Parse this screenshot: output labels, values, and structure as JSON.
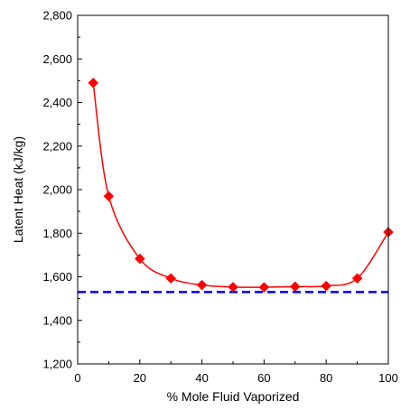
{
  "chart_data": {
    "type": "scatter",
    "title": "",
    "xlabel": "% Mole Fluid Vaporized",
    "ylabel": "Latent Heat (kJ/kg)",
    "xlim": [
      0,
      100
    ],
    "ylim": [
      1200,
      2800
    ],
    "x_ticks": [
      0,
      20,
      40,
      60,
      80,
      100
    ],
    "x_tick_labels": [
      "0",
      "20",
      "40",
      "60",
      "80",
      "100"
    ],
    "y_ticks": [
      1200,
      1400,
      1600,
      1800,
      2000,
      2200,
      2400,
      2600,
      2800
    ],
    "y_tick_labels": [
      "1,200",
      "1,400",
      "1,600",
      "1,800",
      "2,000",
      "2,200",
      "2,400",
      "2,600",
      "2,800"
    ],
    "grid": false,
    "series": [
      {
        "marker": "diamond",
        "line": "smooth",
        "color": "#ff0000",
        "x": [
          5,
          10,
          20,
          30,
          40,
          50,
          60,
          70,
          80,
          90,
          100
        ],
        "y": [
          2490,
          1970,
          1683,
          1593,
          1562,
          1553,
          1552,
          1555,
          1558,
          1593,
          1805
        ]
      }
    ],
    "reference_lines": [
      {
        "axis": "y",
        "value": 1530,
        "color": "#0000ff",
        "style": "dashed"
      }
    ]
  }
}
